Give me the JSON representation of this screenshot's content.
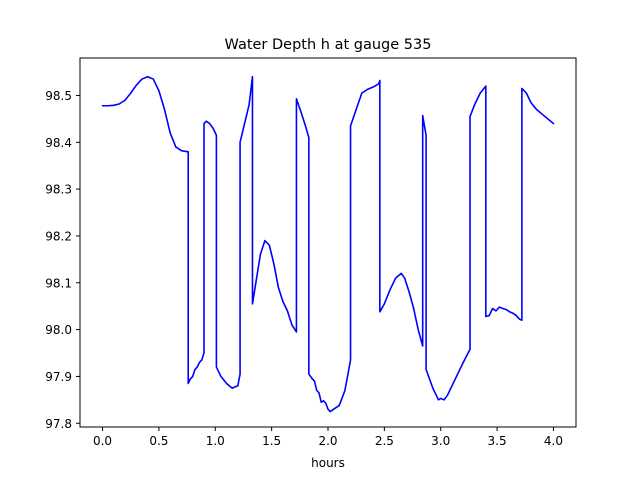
{
  "chart_data": {
    "type": "line",
    "title": "Water Depth h at gauge 535",
    "xlabel": "hours",
    "ylabel": "",
    "xlim": [
      -0.2,
      4.2
    ],
    "ylim": [
      97.792,
      98.58
    ],
    "xticks": [
      0.0,
      0.5,
      1.0,
      1.5,
      2.0,
      2.5,
      3.0,
      3.5,
      4.0
    ],
    "xtick_labels": [
      "0.0",
      "0.5",
      "1.0",
      "1.5",
      "2.0",
      "2.5",
      "3.0",
      "3.5",
      "4.0"
    ],
    "yticks": [
      97.8,
      97.9,
      98.0,
      98.1,
      98.2,
      98.3,
      98.4,
      98.5
    ],
    "ytick_labels": [
      "97.8",
      "97.9",
      "98.0",
      "98.1",
      "98.2",
      "98.3",
      "98.4",
      "98.5"
    ],
    "grid": false,
    "line_color": "#0000ff",
    "series": [
      {
        "x": [
          0.0,
          0.05,
          0.1,
          0.15,
          0.2,
          0.25,
          0.3,
          0.35,
          0.4,
          0.45,
          0.5,
          0.55,
          0.6,
          0.65,
          0.7,
          0.75,
          0.76,
          0.76,
          0.78,
          0.8,
          0.82,
          0.84,
          0.86,
          0.88,
          0.9,
          0.9,
          0.92,
          0.95,
          0.98,
          1.01,
          1.01,
          1.05,
          1.1,
          1.15,
          1.2,
          1.22,
          1.22,
          1.25,
          1.3,
          1.33,
          1.33,
          1.36,
          1.4,
          1.44,
          1.48,
          1.52,
          1.56,
          1.6,
          1.64,
          1.68,
          1.72,
          1.72,
          1.76,
          1.8,
          1.83,
          1.83,
          1.86,
          1.88,
          1.9,
          1.92,
          1.94,
          1.96,
          1.98,
          2.0,
          2.02,
          2.05,
          2.1,
          2.15,
          2.2,
          2.2,
          2.25,
          2.3,
          2.35,
          2.4,
          2.45,
          2.46,
          2.46,
          2.5,
          2.55,
          2.6,
          2.65,
          2.68,
          2.72,
          2.76,
          2.8,
          2.84,
          2.84,
          2.87,
          2.87,
          2.9,
          2.93,
          2.96,
          2.98,
          3.0,
          3.03,
          3.06,
          3.1,
          3.15,
          3.2,
          3.26,
          3.26,
          3.3,
          3.35,
          3.4,
          3.4,
          3.43,
          3.46,
          3.49,
          3.52,
          3.55,
          3.58,
          3.61,
          3.64,
          3.67,
          3.7,
          3.72,
          3.72,
          3.76,
          3.8,
          3.85,
          3.9,
          3.95,
          4.0
        ],
        "y": [
          98.478,
          98.478,
          98.479,
          98.482,
          98.49,
          98.505,
          98.522,
          98.535,
          98.54,
          98.535,
          98.51,
          98.47,
          98.42,
          98.39,
          98.382,
          98.38,
          98.38,
          97.885,
          97.895,
          97.9,
          97.915,
          97.92,
          97.93,
          97.935,
          97.95,
          98.44,
          98.445,
          98.44,
          98.43,
          98.415,
          97.92,
          97.9,
          97.885,
          97.875,
          97.88,
          97.905,
          98.4,
          98.43,
          98.48,
          98.54,
          98.055,
          98.1,
          98.16,
          98.19,
          98.18,
          98.14,
          98.09,
          98.06,
          98.04,
          98.01,
          97.995,
          98.493,
          98.465,
          98.435,
          98.41,
          97.905,
          97.895,
          97.89,
          97.87,
          97.865,
          97.845,
          97.848,
          97.843,
          97.83,
          97.825,
          97.83,
          97.838,
          97.87,
          97.935,
          98.435,
          98.47,
          98.505,
          98.513,
          98.518,
          98.525,
          98.532,
          98.038,
          98.055,
          98.085,
          98.11,
          98.12,
          98.11,
          98.08,
          98.045,
          98.0,
          97.965,
          98.457,
          98.415,
          97.915,
          97.895,
          97.875,
          97.86,
          97.85,
          97.853,
          97.85,
          97.86,
          97.88,
          97.905,
          97.93,
          97.958,
          98.455,
          98.48,
          98.505,
          98.52,
          98.028,
          98.03,
          98.045,
          98.04,
          98.048,
          98.045,
          98.043,
          98.038,
          98.035,
          98.03,
          98.022,
          98.02,
          98.515,
          98.505,
          98.485,
          98.47,
          98.46,
          98.45,
          98.44
        ]
      }
    ]
  }
}
